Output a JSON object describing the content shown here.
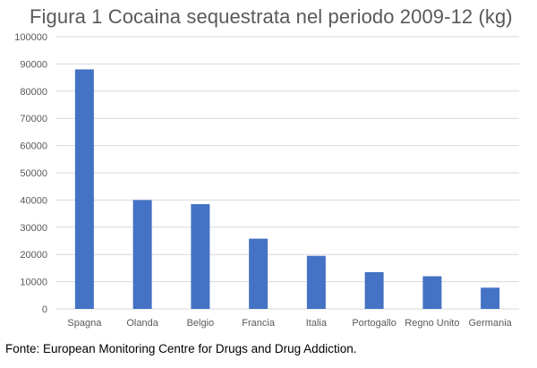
{
  "title": "Figura 1 Cocaina sequestrata nel periodo 2009-12 (kg)",
  "source": "Fonte: European Monitoring Centre for Drugs and Drug Addiction.",
  "bar_color": "#4472C4",
  "grid_color": "#D9D9D9",
  "chart_data": {
    "type": "bar",
    "title": "Figura 1 Cocaina sequestrata nel periodo 2009-12 (kg)",
    "xlabel": "",
    "ylabel": "",
    "categories": [
      "Spagna",
      "Olanda",
      "Belgio",
      "Francia",
      "Italia",
      "Portogallo",
      "Regno Unito",
      "Germania"
    ],
    "values": [
      88000,
      40000,
      38500,
      25800,
      19500,
      13500,
      12000,
      7800
    ],
    "ylim": [
      0,
      100000
    ],
    "yticks": [
      "0",
      "10000",
      "20000",
      "30000",
      "40000",
      "50000",
      "60000",
      "70000",
      "80000",
      "90000",
      "100000"
    ],
    "grid": true,
    "legend": "none"
  }
}
